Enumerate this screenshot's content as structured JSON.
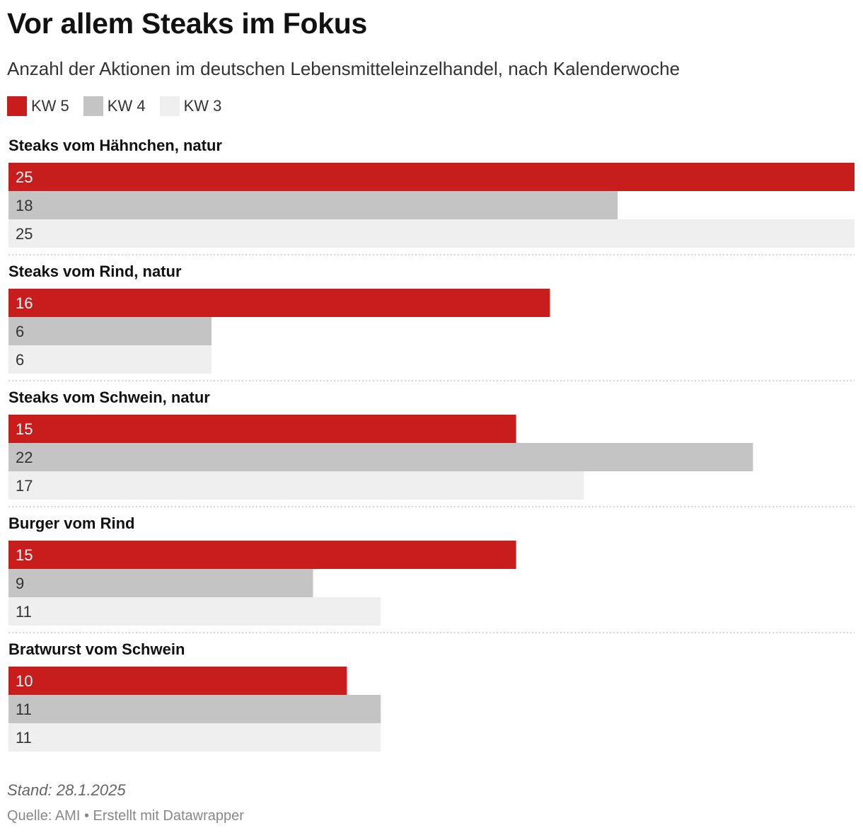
{
  "title": "Vor allem Steaks im Fokus",
  "subtitle": "Anzahl der Aktionen im deutschen Lebensmitteleinzelhandel, nach Kalenderwoche",
  "legend": [
    {
      "label": "KW 5",
      "color": "#c71e1d"
    },
    {
      "label": "KW 4",
      "color": "#c4c4c4"
    },
    {
      "label": "KW 3",
      "color": "#efefef"
    }
  ],
  "note": "Stand: 28.1.2025",
  "footer": {
    "source": "Quelle: AMI",
    "separator": "•",
    "credit": "Erstellt mit Datawrapper"
  },
  "chart_data": {
    "type": "bar",
    "orientation": "horizontal",
    "grouped": true,
    "categories": [
      "Steaks vom Hähnchen, natur",
      "Steaks vom Rind, natur",
      "Steaks vom Schwein, natur",
      "Burger vom Rind",
      "Bratwurst vom Schwein"
    ],
    "series": [
      {
        "name": "KW 5",
        "color": "#c71e1d",
        "label_color": "#ffffff",
        "values": [
          25,
          16,
          15,
          15,
          10
        ]
      },
      {
        "name": "KW 4",
        "color": "#c4c4c4",
        "label_color": "#333333",
        "values": [
          18,
          6,
          22,
          9,
          11
        ]
      },
      {
        "name": "KW 3",
        "color": "#efefef",
        "label_color": "#333333",
        "values": [
          25,
          6,
          17,
          11,
          11
        ]
      }
    ],
    "xlim": [
      0,
      25
    ],
    "data_labels": "inside-left",
    "grid": false
  }
}
